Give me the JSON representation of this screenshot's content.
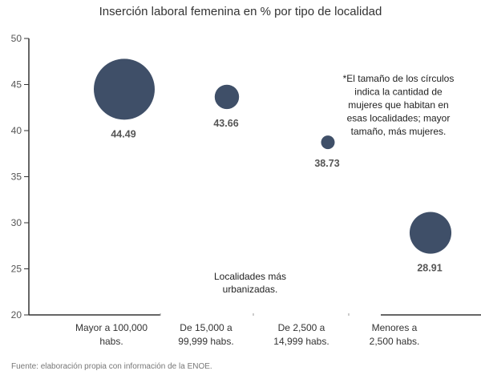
{
  "chart_data": {
    "type": "scatter",
    "subtype": "bubble",
    "title": "Inserción laboral femenina en % por tipo de localidad",
    "xlabel": "",
    "ylabel": "",
    "ylim": [
      20,
      50
    ],
    "yticks": [
      "20",
      "25",
      "30",
      "35",
      "40",
      "45",
      "50"
    ],
    "categories": [
      [
        "Mayor a 100,000",
        "habs."
      ],
      [
        "De 15,000 a",
        "99,999 habs."
      ],
      [
        "De 2,500 a",
        "14,999 habs."
      ],
      [
        "Menores a",
        "2,500 habs."
      ]
    ],
    "values": [
      44.49,
      43.66,
      38.73,
      28.91
    ],
    "data_labels": [
      "44.49",
      "43.66",
      "38.73",
      "28.91"
    ],
    "bubble_size_relative": [
      1.0,
      0.16,
      0.05,
      0.47
    ],
    "bubble_color": "#3f4f68",
    "annotations": {
      "size_note": [
        "*El tamaño de los círculos",
        "indica la cantidad de",
        "mujeres que habitan en",
        "esas localidades; mayor",
        "tamaño, más mujeres."
      ],
      "urban_note": [
        "Localidades más",
        "urbanizadas."
      ]
    },
    "source": "Fuente: elaboración propia con información de la ENOE.",
    "grid": false
  }
}
